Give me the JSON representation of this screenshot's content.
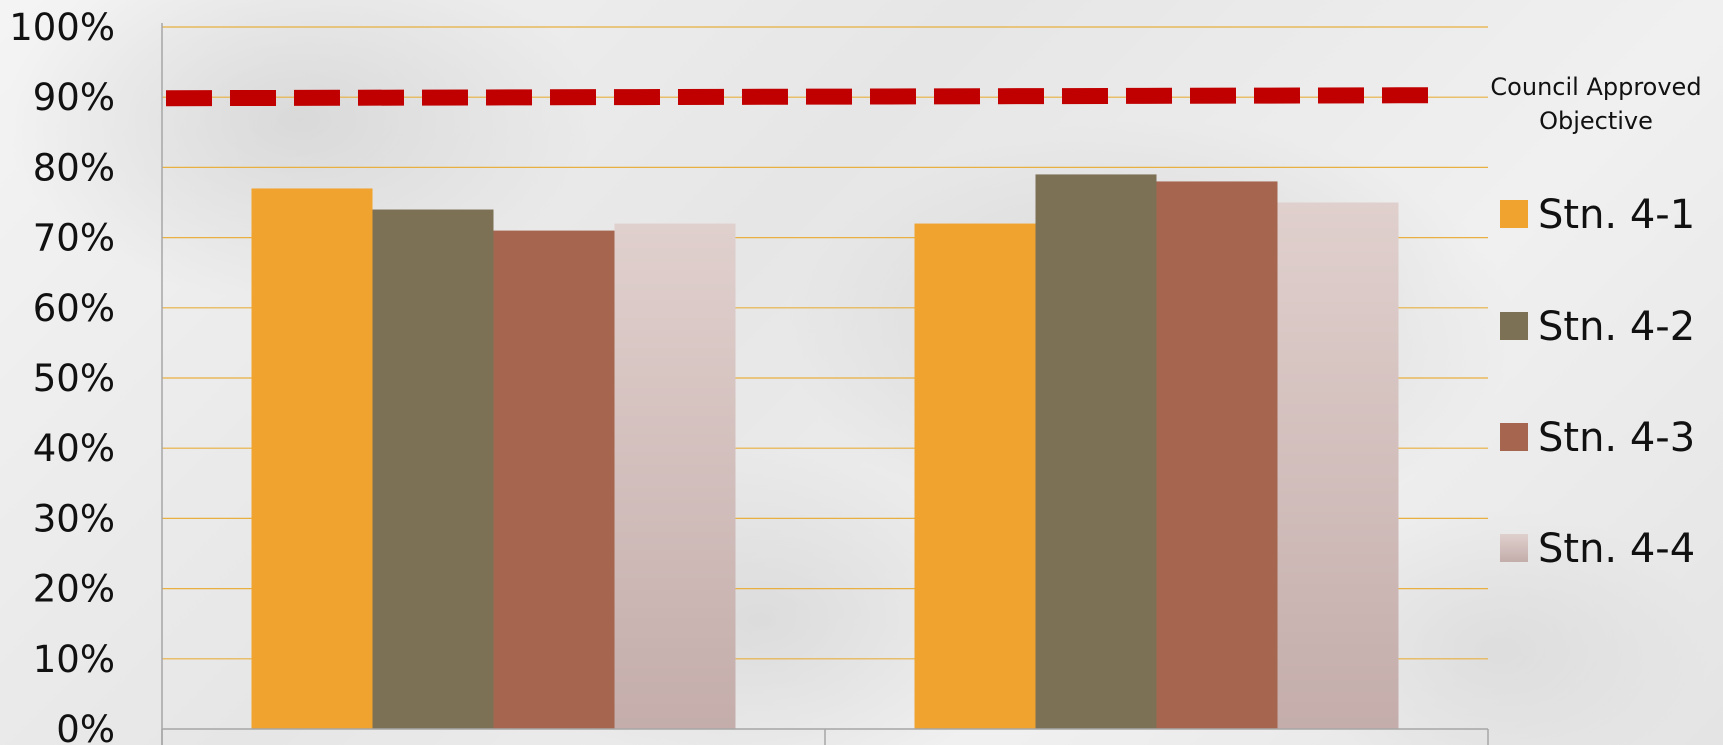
{
  "chart_data": {
    "type": "bar",
    "categories": [
      "",
      ""
    ],
    "series": [
      {
        "name": "Stn. 4-1",
        "values": [
          77,
          72
        ]
      },
      {
        "name": "Stn. 4-2",
        "values": [
          74,
          79
        ]
      },
      {
        "name": "Stn. 4-3",
        "values": [
          71,
          78
        ]
      },
      {
        "name": "Stn. 4-4",
        "values": [
          72,
          75
        ]
      }
    ],
    "reference_line": {
      "label": "Council Approved Objective",
      "value": 90,
      "style": "dashed"
    },
    "ylim": [
      0,
      100
    ],
    "y_ticks": [
      "0%",
      "10%",
      "20%",
      "30%",
      "40%",
      "50%",
      "60%",
      "70%",
      "80%",
      "90%",
      "100%"
    ],
    "grid": true,
    "legend_position": "right",
    "title": "",
    "xlabel": "",
    "ylabel": ""
  },
  "colors": {
    "series": [
      "#f0a32e",
      "#7d7155",
      "#a5654f",
      "#dccbc8"
    ],
    "reference_line": "#c00000",
    "gridline": "#e8b040",
    "axis": "#a6a6a6"
  }
}
